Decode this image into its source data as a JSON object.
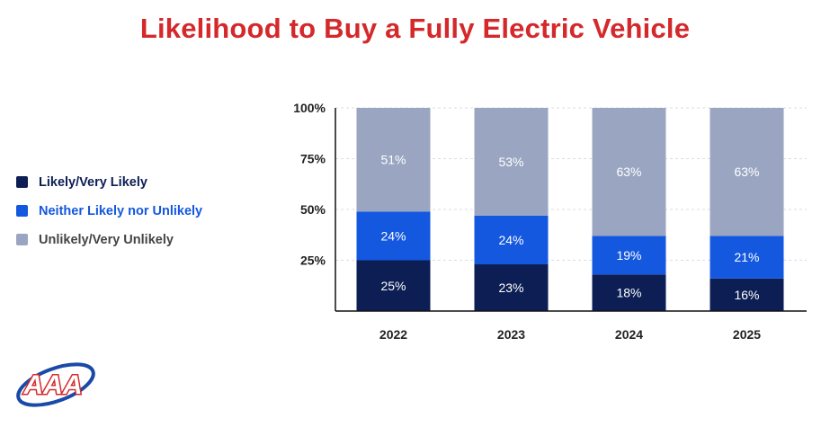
{
  "title": "Likelihood to Buy a Fully Electric Vehicle",
  "colors": {
    "title": "#d5282b",
    "likely": "#0c1e54",
    "neither": "#1458e0",
    "unlikely": "#9aa6c1",
    "logo_red": "#d5282b",
    "logo_blue": "#1a4aa8"
  },
  "logo": {
    "text": "AAA",
    "icon": "aaa-logo-icon"
  },
  "chart_data": {
    "type": "bar",
    "stacked": true,
    "categories": [
      "2022",
      "2023",
      "2024",
      "2025"
    ],
    "series": [
      {
        "name": "Likely/Very Likely",
        "values": [
          25,
          23,
          18,
          16
        ],
        "labels": [
          "25%",
          "23%",
          "18%",
          "16%"
        ],
        "color": "#0c1e54",
        "label_color": "#ffffff"
      },
      {
        "name": "Neither Likely nor Unlikely",
        "values": [
          24,
          24,
          19,
          21
        ],
        "labels": [
          "24%",
          "24%",
          "19%",
          "21%"
        ],
        "color": "#1458e0",
        "label_color": "#ffffff"
      },
      {
        "name": "Unlikely/Very Unlikely",
        "values": [
          51,
          53,
          63,
          63
        ],
        "labels": [
          "51%",
          "53%",
          "63%",
          "63%"
        ],
        "color": "#9aa6c1",
        "label_color": "#ffffff"
      }
    ],
    "legend_text_colors": [
      "#0c1e54",
      "#1458e0",
      "#444444"
    ],
    "yticks": [
      "25%",
      "50%",
      "75%",
      "100%"
    ],
    "ylim": [
      0,
      100
    ],
    "legend_position": "left",
    "grid": true
  }
}
